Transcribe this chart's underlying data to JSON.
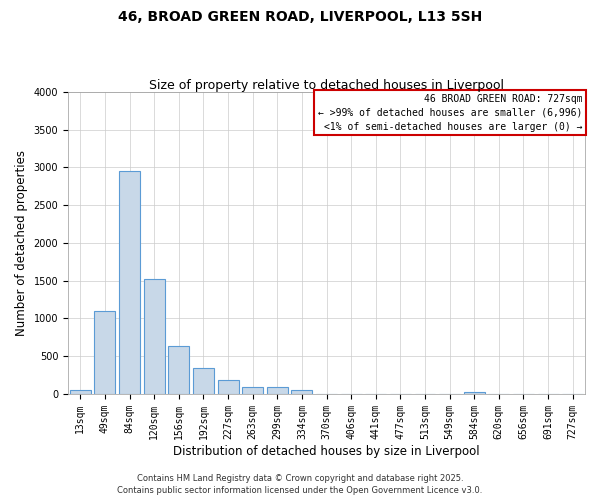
{
  "title": "46, BROAD GREEN ROAD, LIVERPOOL, L13 5SH",
  "subtitle": "Size of property relative to detached houses in Liverpool",
  "xlabel": "Distribution of detached houses by size in Liverpool",
  "ylabel": "Number of detached properties",
  "categories": [
    "13sqm",
    "49sqm",
    "84sqm",
    "120sqm",
    "156sqm",
    "192sqm",
    "227sqm",
    "263sqm",
    "299sqm",
    "334sqm",
    "370sqm",
    "406sqm",
    "441sqm",
    "477sqm",
    "513sqm",
    "549sqm",
    "584sqm",
    "620sqm",
    "656sqm",
    "691sqm",
    "727sqm"
  ],
  "values": [
    50,
    1100,
    2950,
    1520,
    640,
    340,
    190,
    90,
    90,
    55,
    0,
    0,
    0,
    0,
    0,
    0,
    30,
    0,
    0,
    0,
    0
  ],
  "bar_color": "#c8d8e8",
  "bar_edge_color": "#5b9bd5",
  "ylim": [
    0,
    4000
  ],
  "yticks": [
    0,
    500,
    1000,
    1500,
    2000,
    2500,
    3000,
    3500,
    4000
  ],
  "annotation_title": "46 BROAD GREEN ROAD: 727sqm",
  "annotation_line1": "← >99% of detached houses are smaller (6,996)",
  "annotation_line2": "<1% of semi-detached houses are larger (0) →",
  "annotation_box_color": "#ffffff",
  "annotation_border_color": "#cc0000",
  "footer_line1": "Contains HM Land Registry data © Crown copyright and database right 2025.",
  "footer_line2": "Contains public sector information licensed under the Open Government Licence v3.0.",
  "background_color": "#ffffff",
  "grid_color": "#cccccc",
  "title_fontsize": 10,
  "subtitle_fontsize": 9,
  "xlabel_fontsize": 8.5,
  "ylabel_fontsize": 8.5,
  "tick_fontsize": 7,
  "footer_fontsize": 6,
  "annotation_fontsize": 7
}
